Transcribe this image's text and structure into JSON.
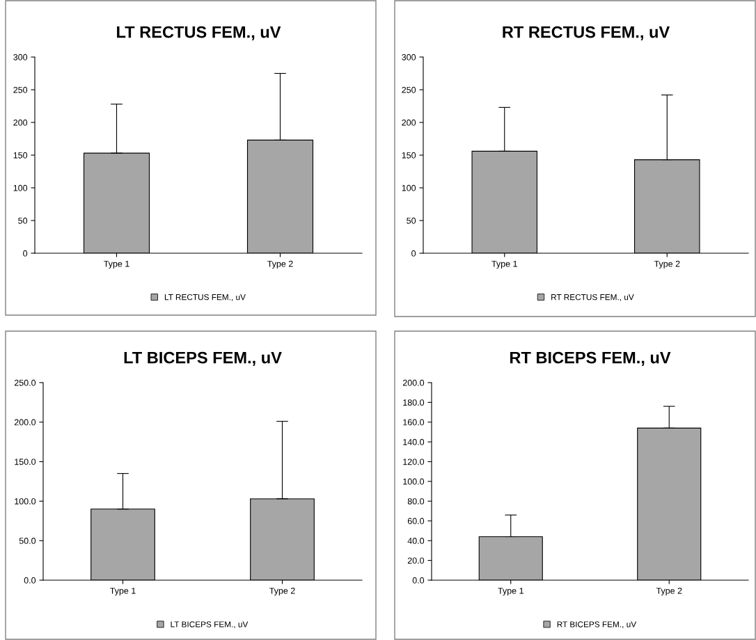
{
  "chart_data": [
    {
      "type": "bar",
      "title": "LT RECTUS FEM., uV",
      "categories": [
        "Type 1",
        "Type 2"
      ],
      "series": [
        {
          "name": "LT RECTUS FEM., uV",
          "color": "#a6a6a6",
          "values": [
            153,
            173
          ],
          "errors": [
            [
              153,
              228
            ],
            [
              173,
              275
            ]
          ]
        }
      ],
      "ylim": [
        0,
        300
      ],
      "yticks": [
        0,
        50,
        100,
        150,
        200,
        250,
        300
      ],
      "grid": false,
      "legend": "bottom"
    },
    {
      "type": "bar",
      "title": "RT RECTUS FEM., uV",
      "categories": [
        "Type 1",
        "Type 2"
      ],
      "series": [
        {
          "name": "RT RECTUS FEM., uV",
          "color": "#a6a6a6",
          "values": [
            156,
            143
          ],
          "errors": [
            [
              156,
              223
            ],
            [
              143,
              242
            ]
          ]
        }
      ],
      "ylim": [
        0,
        300
      ],
      "yticks": [
        0,
        50,
        100,
        150,
        200,
        250,
        300
      ],
      "grid": false,
      "legend": "bottom"
    },
    {
      "type": "bar",
      "title": "LT BICEPS FEM., uV",
      "categories": [
        "Type 1",
        "Type 2"
      ],
      "series": [
        {
          "name": "LT BICEPS FEM., uV",
          "color": "#a6a6a6",
          "values": [
            90,
            103
          ],
          "errors": [
            [
              90,
              135
            ],
            [
              103,
              201
            ]
          ]
        }
      ],
      "ylim": [
        0,
        250
      ],
      "yticks": [
        {
          "value": 0,
          "label": "0.0"
        },
        {
          "value": 50,
          "label": "50.0"
        },
        {
          "value": 100,
          "label": "100.0"
        },
        {
          "value": 150,
          "label": "150.0"
        },
        {
          "value": 200,
          "label": "200.0"
        },
        {
          "value": 250,
          "label": "250.0"
        }
      ],
      "grid": false,
      "legend": "bottom"
    },
    {
      "type": "bar",
      "title": "RT BICEPS FEM., uV",
      "categories": [
        "Type 1",
        "Type 2"
      ],
      "series": [
        {
          "name": "RT BICEPS FEM., uV",
          "color": "#a6a6a6",
          "values": [
            44,
            154
          ],
          "errors": [
            [
              44,
              66
            ],
            [
              154,
              176
            ]
          ]
        }
      ],
      "ylim": [
        0,
        200
      ],
      "yticks": [
        {
          "value": 0,
          "label": "0.0"
        },
        {
          "value": 20,
          "label": "20.0"
        },
        {
          "value": 40,
          "label": "40.0"
        },
        {
          "value": 60,
          "label": "60.0"
        },
        {
          "value": 80,
          "label": "80.0"
        },
        {
          "value": 100,
          "label": "100.0"
        },
        {
          "value": 120,
          "label": "120.0"
        },
        {
          "value": 140,
          "label": "140.0"
        },
        {
          "value": 160,
          "label": "160.0"
        },
        {
          "value": 180,
          "label": "180.0"
        },
        {
          "value": 200,
          "label": "200.0"
        }
      ],
      "grid": false,
      "legend": "bottom"
    }
  ]
}
